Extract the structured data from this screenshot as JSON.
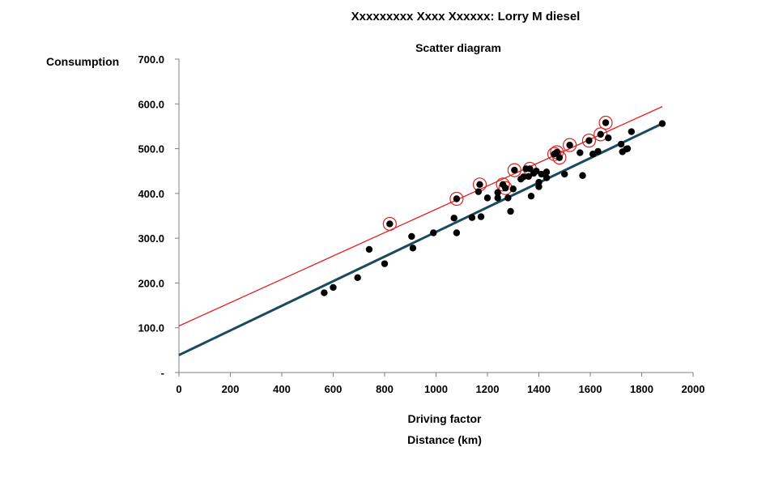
{
  "chart_data": {
    "type": "scatter",
    "title": "Xxxxxxxxx Xxxx Xxxxxx: Lorry M diesel",
    "subtitle": "Scatter diagram",
    "ylabel": "Consumption",
    "xlabel": "Driving factor",
    "xlabel_secondary": "Distance (km)",
    "xlim": [
      0,
      2000
    ],
    "ylim": [
      0,
      700
    ],
    "x_ticks": [
      "0",
      "200",
      "400",
      "600",
      "800",
      "1000",
      "1200",
      "1400",
      "1600",
      "1800",
      "2000"
    ],
    "y_ticks": [
      "-",
      "100.0",
      "200.0",
      "300.0",
      "400.0",
      "500.0",
      "600.0",
      "700.0"
    ],
    "grid": false,
    "legend": "none",
    "colors": {
      "points": "#000000",
      "fit_line": "#1a4a5e",
      "upper_line": "#e02020",
      "highlight_ring": "#e02020"
    },
    "points": [
      [
        565,
        178
      ],
      [
        600,
        190
      ],
      [
        695,
        212
      ],
      [
        740,
        275
      ],
      [
        800,
        243
      ],
      [
        820,
        332
      ],
      [
        905,
        304
      ],
      [
        910,
        278
      ],
      [
        990,
        312
      ],
      [
        1070,
        345
      ],
      [
        1080,
        388
      ],
      [
        1080,
        312
      ],
      [
        1140,
        346
      ],
      [
        1165,
        404
      ],
      [
        1170,
        420
      ],
      [
        1175,
        348
      ],
      [
        1200,
        390
      ],
      [
        1240,
        402
      ],
      [
        1240,
        390
      ],
      [
        1260,
        420
      ],
      [
        1270,
        412
      ],
      [
        1280,
        390
      ],
      [
        1290,
        360
      ],
      [
        1300,
        410
      ],
      [
        1305,
        452
      ],
      [
        1330,
        432
      ],
      [
        1340,
        437
      ],
      [
        1350,
        455
      ],
      [
        1360,
        438
      ],
      [
        1365,
        455
      ],
      [
        1370,
        394
      ],
      [
        1380,
        445
      ],
      [
        1390,
        450
      ],
      [
        1400,
        425
      ],
      [
        1400,
        415
      ],
      [
        1410,
        443
      ],
      [
        1430,
        435
      ],
      [
        1430,
        448
      ],
      [
        1460,
        488
      ],
      [
        1470,
        492
      ],
      [
        1480,
        480
      ],
      [
        1500,
        443
      ],
      [
        1520,
        508
      ],
      [
        1560,
        491
      ],
      [
        1570,
        440
      ],
      [
        1595,
        518
      ],
      [
        1610,
        488
      ],
      [
        1630,
        494
      ],
      [
        1640,
        532
      ],
      [
        1660,
        558
      ],
      [
        1670,
        524
      ],
      [
        1720,
        510
      ],
      [
        1725,
        493
      ],
      [
        1740,
        499
      ],
      [
        1745,
        500
      ],
      [
        1760,
        538
      ],
      [
        1880,
        556
      ]
    ],
    "highlighted_points": [
      [
        820,
        332
      ],
      [
        1080,
        388
      ],
      [
        1170,
        420
      ],
      [
        1260,
        420
      ],
      [
        1270,
        412
      ],
      [
        1305,
        452
      ],
      [
        1365,
        455
      ],
      [
        1460,
        488
      ],
      [
        1470,
        492
      ],
      [
        1480,
        480
      ],
      [
        1520,
        508
      ],
      [
        1595,
        518
      ],
      [
        1640,
        532
      ],
      [
        1660,
        558
      ]
    ],
    "lines": [
      {
        "name": "",
        "color": "#1a4a5e",
        "from": [
          0,
          39
        ],
        "to": [
          1880,
          556
        ]
      },
      {
        "name": "",
        "color": "#e02020",
        "from": [
          0,
          104
        ],
        "to": [
          1880,
          594
        ]
      }
    ]
  }
}
